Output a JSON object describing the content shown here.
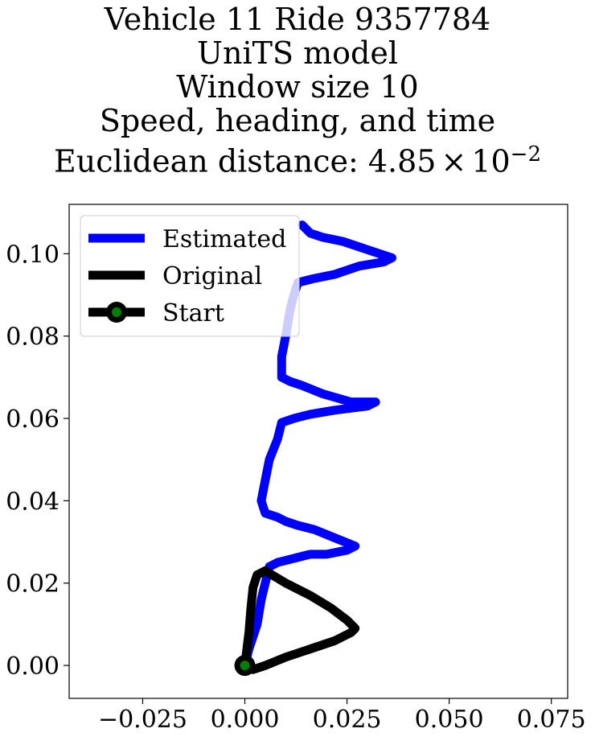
{
  "chart_data": {
    "type": "line",
    "title_lines": [
      "Vehicle 11 Ride 9357784",
      "UniTS model",
      "Window size 10",
      "Speed, heading, and time"
    ],
    "title_distance": {
      "prefix": "Euclidean distance: ",
      "mantissa": "4.85",
      "times": "×",
      "base": "10",
      "exponent": "−2"
    },
    "xlabel": "",
    "ylabel": "",
    "xlim": [
      -0.043,
      0.079
    ],
    "ylim": [
      -0.008,
      0.112
    ],
    "xticks": [
      -0.025,
      0.0,
      0.025,
      0.05,
      0.075
    ],
    "xtick_labels": [
      "−0.025",
      "0.000",
      "0.025",
      "0.050",
      "0.075"
    ],
    "yticks": [
      0.0,
      0.02,
      0.04,
      0.06,
      0.08,
      0.1
    ],
    "ytick_labels": [
      "0.00",
      "0.02",
      "0.04",
      "0.06",
      "0.08",
      "0.10"
    ],
    "grid": false,
    "legend": {
      "placement": "top-left",
      "entries": [
        {
          "label": "Estimated",
          "color": "#0000ff",
          "marker": "none"
        },
        {
          "label": "Original",
          "color": "#000000",
          "marker": "none"
        },
        {
          "label": "Start",
          "color": "#000000",
          "marker": "circle",
          "marker_face": "#008000"
        }
      ]
    },
    "series": [
      {
        "name": "Estimated",
        "color": "#0000ff",
        "x": [
          0.0,
          0.001,
          0.003,
          0.004,
          0.005,
          0.006,
          0.008,
          0.012,
          0.016,
          0.02,
          0.025,
          0.027,
          0.022,
          0.017,
          0.013,
          0.01,
          0.008,
          0.005,
          0.004,
          0.005,
          0.006,
          0.008,
          0.009,
          0.012,
          0.016,
          0.022,
          0.03,
          0.032,
          0.026,
          0.019,
          0.014,
          0.011,
          0.009,
          0.009,
          0.01,
          0.011,
          0.012,
          0.013,
          0.017,
          0.022,
          0.028,
          0.034,
          0.036,
          0.03,
          0.024,
          0.019,
          0.016,
          0.014
        ],
        "y": [
          0.0,
          0.004,
          0.01,
          0.016,
          0.02,
          0.024,
          0.025,
          0.026,
          0.027,
          0.027,
          0.028,
          0.029,
          0.031,
          0.033,
          0.034,
          0.035,
          0.036,
          0.037,
          0.04,
          0.045,
          0.05,
          0.055,
          0.059,
          0.06,
          0.061,
          0.062,
          0.063,
          0.064,
          0.064,
          0.066,
          0.068,
          0.069,
          0.07,
          0.075,
          0.08,
          0.086,
          0.09,
          0.093,
          0.094,
          0.095,
          0.097,
          0.098,
          0.099,
          0.101,
          0.103,
          0.104,
          0.105,
          0.107
        ]
      },
      {
        "name": "Original",
        "color": "#000000",
        "x": [
          0.0,
          0.001,
          0.0015,
          0.002,
          0.003,
          0.005,
          0.01,
          0.016,
          0.021,
          0.025,
          0.027,
          0.026,
          0.022,
          0.016,
          0.01,
          0.005,
          0.002,
          0.0
        ],
        "y": [
          0.0,
          0.008,
          0.014,
          0.019,
          0.022,
          0.023,
          0.02,
          0.017,
          0.014,
          0.011,
          0.009,
          0.008,
          0.006,
          0.004,
          0.002,
          0.0,
          -0.001,
          0.0
        ]
      }
    ],
    "start_point": {
      "label": "Start",
      "x": 0.0,
      "y": 0.0
    }
  }
}
